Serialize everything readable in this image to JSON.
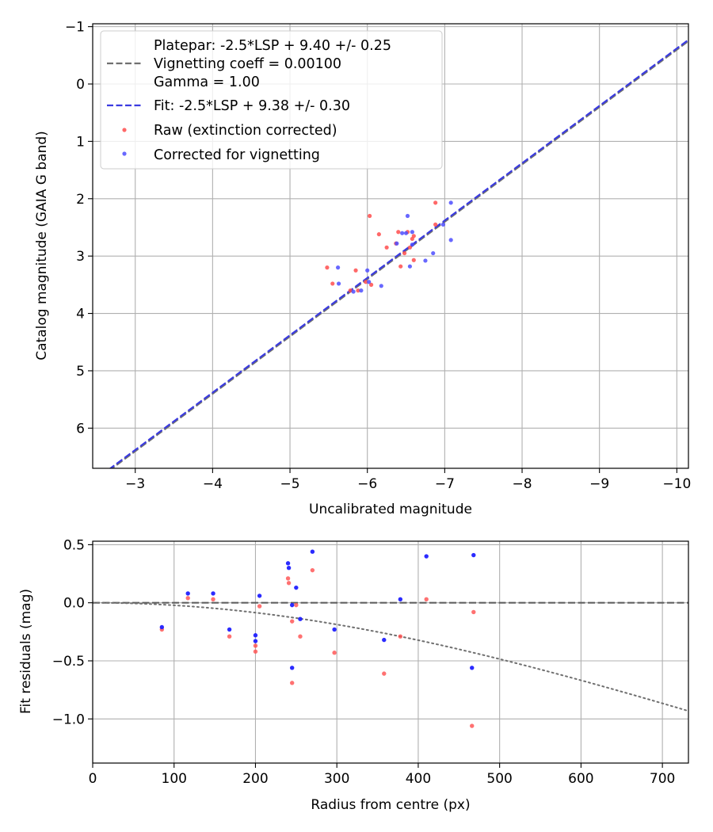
{
  "chart_data": [
    {
      "type": "scatter",
      "xlabel": "Uncalibrated magnitude",
      "ylabel": "Catalog magnitude (GAIA G band)",
      "xlim": [
        -2.45,
        -10.15
      ],
      "ylim": [
        6.7,
        -1.05
      ],
      "x_inverted": true,
      "y_inverted": true,
      "grid": true,
      "xticks": [
        -3,
        -4,
        -5,
        -6,
        -7,
        -8,
        -9,
        -10
      ],
      "xtick_labels": [
        "−3",
        "−4",
        "−5",
        "−6",
        "−7",
        "−8",
        "−9",
        "−10"
      ],
      "yticks": [
        -1,
        0,
        1,
        2,
        3,
        4,
        5,
        6
      ],
      "ytick_labels": [
        "−1",
        "0",
        "1",
        "2",
        "3",
        "4",
        "5",
        "6"
      ],
      "legend": {
        "position": "top-left",
        "entries": [
          {
            "name": "platepar",
            "label": "Platepar: -2.5*LSP + 9.40 +/- 0.25\nVignetting coeff = 0.00100\nGamma = 1.00",
            "style": "dashed-line",
            "color": "#707070"
          },
          {
            "name": "fit",
            "label": "Fit: -2.5*LSP + 9.38 +/- 0.30",
            "style": "dashed-line",
            "color": "#3a3ae0"
          },
          {
            "name": "raw",
            "label": "Raw (extinction corrected)",
            "style": "marker",
            "color": "#ff4d4d"
          },
          {
            "name": "corrected",
            "label": "Corrected for vignetting",
            "style": "marker",
            "color": "#4d4dff"
          }
        ]
      },
      "lines": [
        {
          "name": "Platepar",
          "slope": 1,
          "intercept": 9.4,
          "color": "#707070"
        },
        {
          "name": "Fit",
          "slope": 1,
          "intercept": 9.38,
          "color": "#3a3ae0"
        }
      ],
      "series": [
        {
          "name": "Raw (extinction corrected)",
          "color": "#ff4d4d",
          "points": [
            [
              -5.48,
              3.2
            ],
            [
              -5.55,
              3.48
            ],
            [
              -5.78,
              3.6
            ],
            [
              -5.85,
              3.25
            ],
            [
              -5.88,
              3.6
            ],
            [
              -5.98,
              3.45
            ],
            [
              -6.03,
              2.3
            ],
            [
              -6.05,
              3.5
            ],
            [
              -6.15,
              2.62
            ],
            [
              -6.25,
              2.85
            ],
            [
              -6.37,
              2.78
            ],
            [
              -6.4,
              2.58
            ],
            [
              -6.43,
              3.18
            ],
            [
              -6.48,
              2.95
            ],
            [
              -6.52,
              2.58
            ],
            [
              -6.55,
              2.85
            ],
            [
              -6.58,
              2.7
            ],
            [
              -6.6,
              2.65
            ],
            [
              -6.6,
              3.07
            ],
            [
              -6.88,
              2.07
            ],
            [
              -6.88,
              2.45
            ]
          ]
        },
        {
          "name": "Corrected for vignetting",
          "color": "#4d4dff",
          "points": [
            [
              -5.62,
              3.2
            ],
            [
              -5.63,
              3.48
            ],
            [
              -5.82,
              3.62
            ],
            [
              -5.92,
              3.6
            ],
            [
              -6.0,
              3.25
            ],
            [
              -6.02,
              3.45
            ],
            [
              -6.18,
              3.52
            ],
            [
              -6.38,
              2.78
            ],
            [
              -6.45,
              2.6
            ],
            [
              -6.5,
              2.6
            ],
            [
              -6.52,
              2.3
            ],
            [
              -6.55,
              3.18
            ],
            [
              -6.58,
              2.58
            ],
            [
              -6.58,
              2.8
            ],
            [
              -6.75,
              3.08
            ],
            [
              -6.85,
              2.95
            ],
            [
              -6.98,
              2.45
            ],
            [
              -7.08,
              2.07
            ],
            [
              -7.08,
              2.72
            ]
          ]
        }
      ]
    },
    {
      "type": "scatter",
      "xlabel": "Radius from centre (px)",
      "ylabel": "Fit residuals (mag)",
      "xlim": [
        0,
        732
      ],
      "ylim": [
        -1.38,
        0.53
      ],
      "grid": true,
      "xticks": [
        0,
        100,
        200,
        300,
        400,
        500,
        600,
        700
      ],
      "xtick_labels": [
        "0",
        "100",
        "200",
        "300",
        "400",
        "500",
        "600",
        "700"
      ],
      "yticks": [
        0.5,
        0.0,
        -0.5,
        -1.0
      ],
      "ytick_labels": [
        "0.5",
        "0.0",
        "−0.5",
        "−1.0"
      ],
      "zero_line": {
        "y": 0,
        "color": "#555555",
        "style": "dashed"
      },
      "vignetting_curve": {
        "coeff": 0.001,
        "color": "#707070",
        "style": "dotted"
      },
      "series": [
        {
          "name": "Raw (extinction corrected)",
          "color": "#ff4d4d",
          "points": [
            [
              85,
              -0.23
            ],
            [
              117,
              0.04
            ],
            [
              148,
              0.03
            ],
            [
              168,
              -0.29
            ],
            [
              200,
              -0.37
            ],
            [
              200,
              -0.42
            ],
            [
              205,
              -0.03
            ],
            [
              240,
              0.21
            ],
            [
              241,
              0.17
            ],
            [
              245,
              -0.16
            ],
            [
              245,
              -0.69
            ],
            [
              250,
              -0.02
            ],
            [
              255,
              -0.29
            ],
            [
              270,
              0.28
            ],
            [
              297,
              -0.43
            ],
            [
              358,
              -0.61
            ],
            [
              378,
              -0.29
            ],
            [
              410,
              0.03
            ],
            [
              466,
              -1.06
            ],
            [
              468,
              -0.08
            ]
          ]
        },
        {
          "name": "Corrected for vignetting",
          "color": "#2020ff",
          "points": [
            [
              85,
              -0.21
            ],
            [
              117,
              0.08
            ],
            [
              148,
              0.08
            ],
            [
              168,
              -0.23
            ],
            [
              200,
              -0.28
            ],
            [
              200,
              -0.33
            ],
            [
              205,
              0.06
            ],
            [
              240,
              0.34
            ],
            [
              241,
              0.3
            ],
            [
              245,
              -0.02
            ],
            [
              245,
              -0.56
            ],
            [
              250,
              0.13
            ],
            [
              255,
              -0.14
            ],
            [
              270,
              0.44
            ],
            [
              297,
              -0.23
            ],
            [
              358,
              -0.32
            ],
            [
              378,
              0.03
            ],
            [
              410,
              0.4
            ],
            [
              466,
              -0.56
            ],
            [
              468,
              0.41
            ]
          ]
        }
      ]
    }
  ]
}
